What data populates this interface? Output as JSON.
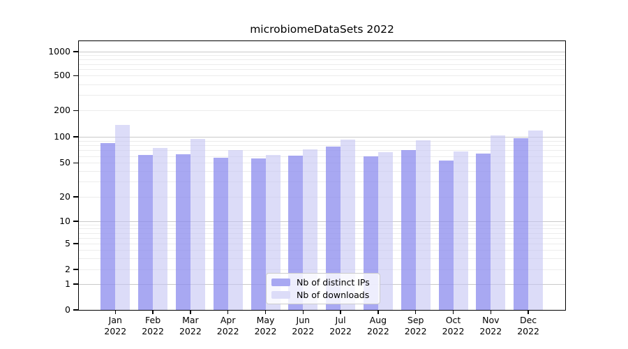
{
  "figure": {
    "title": "microbiomeDataSets 2022",
    "background": "#ffffff"
  },
  "legend": {
    "items": [
      {
        "label": "Nb of distinct IPs",
        "color": "#a8a8f2"
      },
      {
        "label": "Nb of downloads",
        "color": "#dcdcf8"
      }
    ],
    "position": "lower center"
  },
  "chart_data": {
    "type": "bar",
    "title": "microbiomeDataSets 2022",
    "categories": [
      "Jan",
      "Feb",
      "Mar",
      "Apr",
      "May",
      "Jun",
      "Jul",
      "Aug",
      "Sep",
      "Oct",
      "Nov",
      "Dec"
    ],
    "year_label": "2022",
    "series": [
      {
        "name": "Nb of distinct IPs",
        "color": "#a8a8f2",
        "bar_rgba": "rgba(139,139,238,0.75)",
        "values": [
          85,
          62,
          63,
          57,
          56,
          61,
          77,
          60,
          70,
          53,
          64,
          97
        ]
      },
      {
        "name": "Nb of downloads",
        "color": "#dcdcf8",
        "bar_rgba": "rgba(197,197,243,0.6)",
        "values": [
          137,
          75,
          95,
          70,
          62,
          72,
          93,
          66,
          91,
          68,
          104,
          118
        ]
      }
    ],
    "xlabel": "",
    "ylabel": "",
    "yscale": "symlog",
    "ylim": [
      0,
      1400
    ],
    "y_ticks": [
      0,
      1,
      2,
      5,
      10,
      20,
      50,
      100,
      200,
      500,
      1000
    ],
    "y_minor_ticks": [
      3,
      4,
      6,
      7,
      8,
      9,
      30,
      40,
      60,
      70,
      80,
      90,
      300,
      400,
      600,
      700,
      800,
      900
    ],
    "grid": true,
    "grid_color_major": "#c9c9c9",
    "grid_color_minor": "#ececec",
    "scale_anchors": [
      [
        0,
        1.0
      ],
      [
        1,
        0.9039
      ],
      [
        2,
        0.8494
      ],
      [
        5,
        0.7532
      ],
      [
        10,
        0.6701
      ],
      [
        20,
        0.5792
      ],
      [
        50,
        0.4527
      ],
      [
        100,
        0.3558
      ],
      [
        200,
        0.2579
      ],
      [
        500,
        0.1281
      ],
      [
        1000,
        0.039
      ]
    ]
  }
}
